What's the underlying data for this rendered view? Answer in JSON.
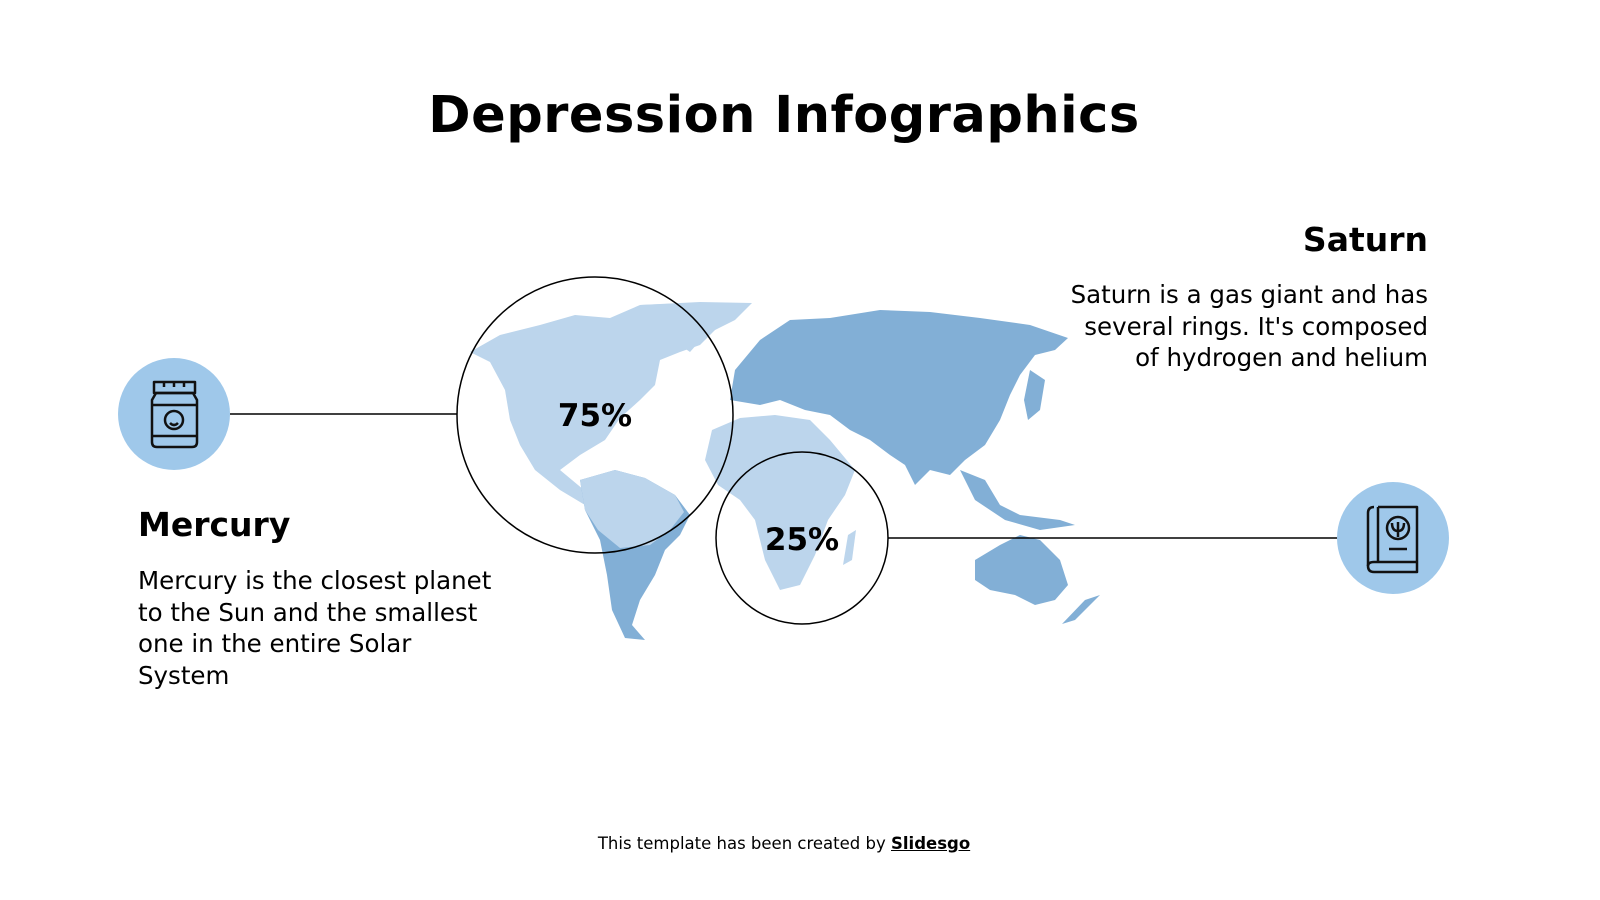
{
  "title": "Depression Infographics",
  "left_item": {
    "heading": "Mercury",
    "body": "Mercury is the closest planet to the Sun and the smallest one in the entire Solar System",
    "icon": "medicine-jar-icon"
  },
  "right_item": {
    "heading": "Saturn",
    "body": "Saturn is a gas giant and has several rings. It's composed of hydrogen and helium",
    "icon": "psychology-book-icon"
  },
  "highlights": [
    {
      "label": "75%",
      "value": 75
    },
    {
      "label": "25%",
      "value": 25
    }
  ],
  "footer": {
    "text": "This template has been created by ",
    "link": "Slidesgo"
  },
  "colors": {
    "icon_circle": "#9fc8ea",
    "map_dark": "#82afd6",
    "map_light": "#bcd5ec",
    "text": "#000000"
  }
}
